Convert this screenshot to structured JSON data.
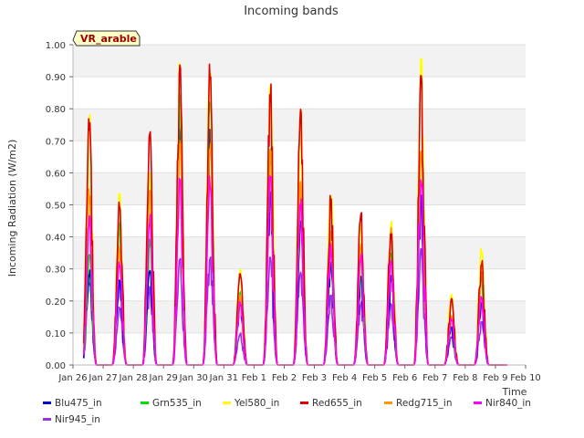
{
  "chart_data": {
    "type": "line",
    "title": "Incoming bands",
    "ylabel": "Incoming Radiation (W/m2)",
    "xlabel": "Time",
    "ylim": [
      0,
      1.0
    ],
    "yticks": [
      "0.00",
      "0.10",
      "0.20",
      "0.30",
      "0.40",
      "0.50",
      "0.60",
      "0.70",
      "0.80",
      "0.90",
      "1.00"
    ],
    "xlim": [
      0,
      15
    ],
    "xticks": [
      "Jan 26",
      "Jan 27",
      "Jan 28",
      "Jan 29",
      "Jan 30",
      "Jan 31",
      "Feb 1",
      "Feb 2",
      "Feb 3",
      "Feb 4",
      "Feb 5",
      "Feb 6",
      "Feb 7",
      "Feb 8",
      "Feb 9",
      "Feb 10"
    ],
    "background_bands": true,
    "annotation": "VR_arable",
    "legend_position": "bottom",
    "series": [
      {
        "name": "Blu475_in",
        "color": "#0000cc"
      },
      {
        "name": "Grn535_in",
        "color": "#00dd00"
      },
      {
        "name": "Yel580_in",
        "color": "#ffff00"
      },
      {
        "name": "Red655_in",
        "color": "#dd0000"
      },
      {
        "name": "Redg715_in",
        "color": "#ff9900"
      },
      {
        "name": "Nir840_in",
        "color": "#ff00ff"
      },
      {
        "name": "Nir945_in",
        "color": "#9933dd"
      }
    ],
    "daily_peaks": [
      {
        "day": 0,
        "Yel580_in": 0.79,
        "Red655_in": 0.78,
        "Redg715_in": 0.55,
        "Nir840_in": 0.47,
        "Nir945_in": 0.27,
        "Blu475_in": 0.3,
        "Grn535_in": 0.35
      },
      {
        "day": 1,
        "Yel580_in": 0.54,
        "Red655_in": 0.52,
        "Redg715_in": 0.37,
        "Nir840_in": 0.33,
        "Nir945_in": 0.19,
        "Blu475_in": 0.28,
        "Grn535_in": 0.45
      },
      {
        "day": 2,
        "Yel580_in": 0.6,
        "Red655_in": 0.77,
        "Redg715_in": 0.56,
        "Nir840_in": 0.47,
        "Nir945_in": 0.25,
        "Blu475_in": 0.3,
        "Grn535_in": 0.4
      },
      {
        "day": 3,
        "Yel580_in": 0.95,
        "Red655_in": 0.95,
        "Redg715_in": 0.71,
        "Nir840_in": 0.59,
        "Nir945_in": 0.35,
        "Blu475_in": 0.75,
        "Grn535_in": 0.85
      },
      {
        "day": 4,
        "Yel580_in": 0.96,
        "Red655_in": 0.95,
        "Redg715_in": 0.72,
        "Nir840_in": 0.59,
        "Nir945_in": 0.35,
        "Blu475_in": 0.74,
        "Grn535_in": 0.85
      },
      {
        "day": 5,
        "Yel580_in": 0.31,
        "Red655_in": 0.29,
        "Redg715_in": 0.22,
        "Nir840_in": 0.2,
        "Nir945_in": 0.1,
        "Blu475_in": 0.2,
        "Grn535_in": 0.24
      },
      {
        "day": 6,
        "Yel580_in": 0.9,
        "Red655_in": 0.89,
        "Redg715_in": 0.69,
        "Nir840_in": 0.59,
        "Nir945_in": 0.35,
        "Blu475_in": 0.55,
        "Grn535_in": 0.68
      },
      {
        "day": 7,
        "Yel580_in": 0.83,
        "Red655_in": 0.8,
        "Redg715_in": 0.58,
        "Nir840_in": 0.52,
        "Nir945_in": 0.3,
        "Blu475_in": 0.45,
        "Grn535_in": 0.55
      },
      {
        "day": 8,
        "Yel580_in": 0.56,
        "Red655_in": 0.54,
        "Redg715_in": 0.42,
        "Nir840_in": 0.38,
        "Nir945_in": 0.22,
        "Blu475_in": 0.33,
        "Grn535_in": 0.41
      },
      {
        "day": 9,
        "Yel580_in": 0.45,
        "Red655_in": 0.49,
        "Redg715_in": 0.38,
        "Nir840_in": 0.35,
        "Nir945_in": 0.2,
        "Blu475_in": 0.28,
        "Grn535_in": 0.35
      },
      {
        "day": 10,
        "Yel580_in": 0.45,
        "Red655_in": 0.44,
        "Redg715_in": 0.43,
        "Nir840_in": 0.33,
        "Nir945_in": 0.2,
        "Blu475_in": 0.28,
        "Grn535_in": 0.36
      },
      {
        "day": 11,
        "Yel580_in": 0.97,
        "Red655_in": 0.93,
        "Redg715_in": 0.72,
        "Nir840_in": 0.61,
        "Nir945_in": 0.37,
        "Blu475_in": 0.55,
        "Grn535_in": 0.7
      },
      {
        "day": 12,
        "Yel580_in": 0.23,
        "Red655_in": 0.21,
        "Redg715_in": 0.16,
        "Nir840_in": 0.15,
        "Nir945_in": 0.09,
        "Blu475_in": 0.12,
        "Grn535_in": 0.15
      },
      {
        "day": 13,
        "Yel580_in": 0.37,
        "Red655_in": 0.33,
        "Redg715_in": 0.31,
        "Nir840_in": 0.22,
        "Nir945_in": 0.14,
        "Blu475_in": 0.2,
        "Grn535_in": 0.28
      }
    ]
  }
}
